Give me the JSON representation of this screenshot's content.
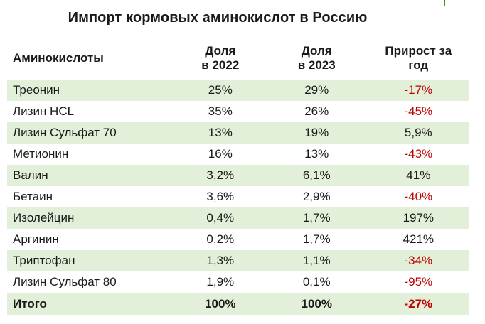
{
  "title": "Импорт кормовых аминокислот в Россию",
  "colors": {
    "shade": "#e2efd9",
    "negative": "#c00000",
    "accent": "#4a8c2a"
  },
  "headers": {
    "name": "Аминокислоты",
    "share_2022_line1": "Доля",
    "share_2022_line2": "в 2022",
    "share_2023_line1": "Доля",
    "share_2023_line2": "в 2023",
    "growth_line1": "Прирост за",
    "growth_line2": "год"
  },
  "rows": [
    {
      "name": "Треонин",
      "share_2022": "25%",
      "share_2023": "29%",
      "growth": "-17%"
    },
    {
      "name": "Лизин HCL",
      "share_2022": "35%",
      "share_2023": "26%",
      "growth": "-45%"
    },
    {
      "name": "Лизин Сульфат 70",
      "share_2022": "13%",
      "share_2023": "19%",
      "growth": "5,9%"
    },
    {
      "name": "Метионин",
      "share_2022": "16%",
      "share_2023": "13%",
      "growth": "-43%"
    },
    {
      "name": "Валин",
      "share_2022": "3,2%",
      "share_2023": "6,1%",
      "growth": "41%"
    },
    {
      "name": "Бетаин",
      "share_2022": "3,6%",
      "share_2023": "2,9%",
      "growth": "-40%"
    },
    {
      "name": "Изолейцин",
      "share_2022": "0,4%",
      "share_2023": "1,7%",
      "growth": "197%"
    },
    {
      "name": "Аргинин",
      "share_2022": "0,2%",
      "share_2023": "1,7%",
      "growth": "421%"
    },
    {
      "name": "Триптофан",
      "share_2022": "1,3%",
      "share_2023": "1,1%",
      "growth": "-34%"
    },
    {
      "name": "Лизин Сульфат 80",
      "share_2022": "1,9%",
      "share_2023": "0,1%",
      "growth": "-95%"
    }
  ],
  "total": {
    "name": "Итого",
    "share_2022": "100%",
    "share_2023": "100%",
    "growth": "-27%"
  }
}
